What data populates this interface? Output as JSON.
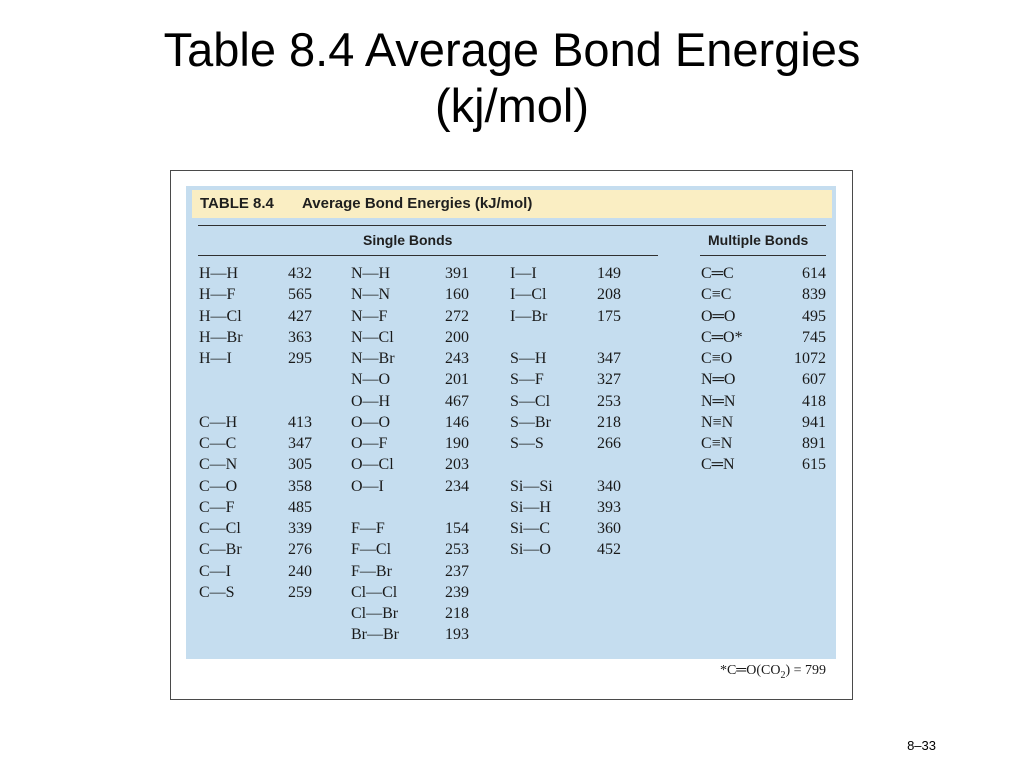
{
  "slide": {
    "title_line1": "Table 8.4  Average Bond Energies",
    "title_line2": "(kj/mol)",
    "page_number": "8–33"
  },
  "table": {
    "caption_number": "TABLE 8.4",
    "caption_text": "Average Bond Energies (kJ/mol)",
    "single_header": "Single Bonds",
    "multiple_header": "Multiple Bonds",
    "columns": [
      [
        {
          "bond": "H—H",
          "energy": "432"
        },
        {
          "bond": "H—F",
          "energy": "565"
        },
        {
          "bond": "H—Cl",
          "energy": "427"
        },
        {
          "bond": "H—Br",
          "energy": "363"
        },
        {
          "bond": "H—I",
          "energy": "295"
        },
        null,
        null,
        {
          "bond": "C—H",
          "energy": "413"
        },
        {
          "bond": "C—C",
          "energy": "347"
        },
        {
          "bond": "C—N",
          "energy": "305"
        },
        {
          "bond": "C—O",
          "energy": "358"
        },
        {
          "bond": "C—F",
          "energy": "485"
        },
        {
          "bond": "C—Cl",
          "energy": "339"
        },
        {
          "bond": "C—Br",
          "energy": "276"
        },
        {
          "bond": "C—I",
          "energy": "240"
        },
        {
          "bond": "C—S",
          "energy": "259"
        }
      ],
      [
        {
          "bond": "N—H",
          "energy": "391"
        },
        {
          "bond": "N—N",
          "energy": "160"
        },
        {
          "bond": "N—F",
          "energy": "272"
        },
        {
          "bond": "N—Cl",
          "energy": "200"
        },
        {
          "bond": "N—Br",
          "energy": "243"
        },
        {
          "bond": "N—O",
          "energy": "201"
        },
        {
          "bond": "O—H",
          "energy": "467"
        },
        {
          "bond": "O—O",
          "energy": "146"
        },
        {
          "bond": "O—F",
          "energy": "190"
        },
        {
          "bond": "O—Cl",
          "energy": "203"
        },
        {
          "bond": "O—I",
          "energy": "234"
        },
        null,
        {
          "bond": "F—F",
          "energy": "154"
        },
        {
          "bond": "F—Cl",
          "energy": "253"
        },
        {
          "bond": "F—Br",
          "energy": "237"
        },
        {
          "bond": "Cl—Cl",
          "energy": "239"
        },
        {
          "bond": "Cl—Br",
          "energy": "218"
        },
        {
          "bond": "Br—Br",
          "energy": "193"
        }
      ],
      [
        {
          "bond": "I—I",
          "energy": "149"
        },
        {
          "bond": "I—Cl",
          "energy": "208"
        },
        {
          "bond": "I—Br",
          "energy": "175"
        },
        null,
        {
          "bond": "S—H",
          "energy": "347"
        },
        {
          "bond": "S—F",
          "energy": "327"
        },
        {
          "bond": "S—Cl",
          "energy": "253"
        },
        {
          "bond": "S—Br",
          "energy": "218"
        },
        {
          "bond": "S—S",
          "energy": "266"
        },
        null,
        {
          "bond": "Si—Si",
          "energy": "340"
        },
        {
          "bond": "Si—H",
          "energy": "393"
        },
        {
          "bond": "Si—C",
          "energy": "360"
        },
        {
          "bond": "Si—O",
          "energy": "452"
        }
      ],
      [
        {
          "bond": "C═C",
          "energy": "614"
        },
        {
          "bond": "C≡C",
          "energy": "839"
        },
        {
          "bond": "O═O",
          "energy": "495"
        },
        {
          "bond": "C═O*",
          "energy": "745"
        },
        {
          "bond": "C≡O",
          "energy": "1072"
        },
        {
          "bond": "N═O",
          "energy": "607"
        },
        {
          "bond": "N═N",
          "energy": "418"
        },
        {
          "bond": "N≡N",
          "energy": "941"
        },
        {
          "bond": "C≡N",
          "energy": "891"
        },
        {
          "bond": "C═N",
          "energy": "615"
        }
      ]
    ],
    "footnote_prefix": "*C═O(CO",
    "footnote_sub": "2",
    "footnote_suffix": ") = 799"
  }
}
